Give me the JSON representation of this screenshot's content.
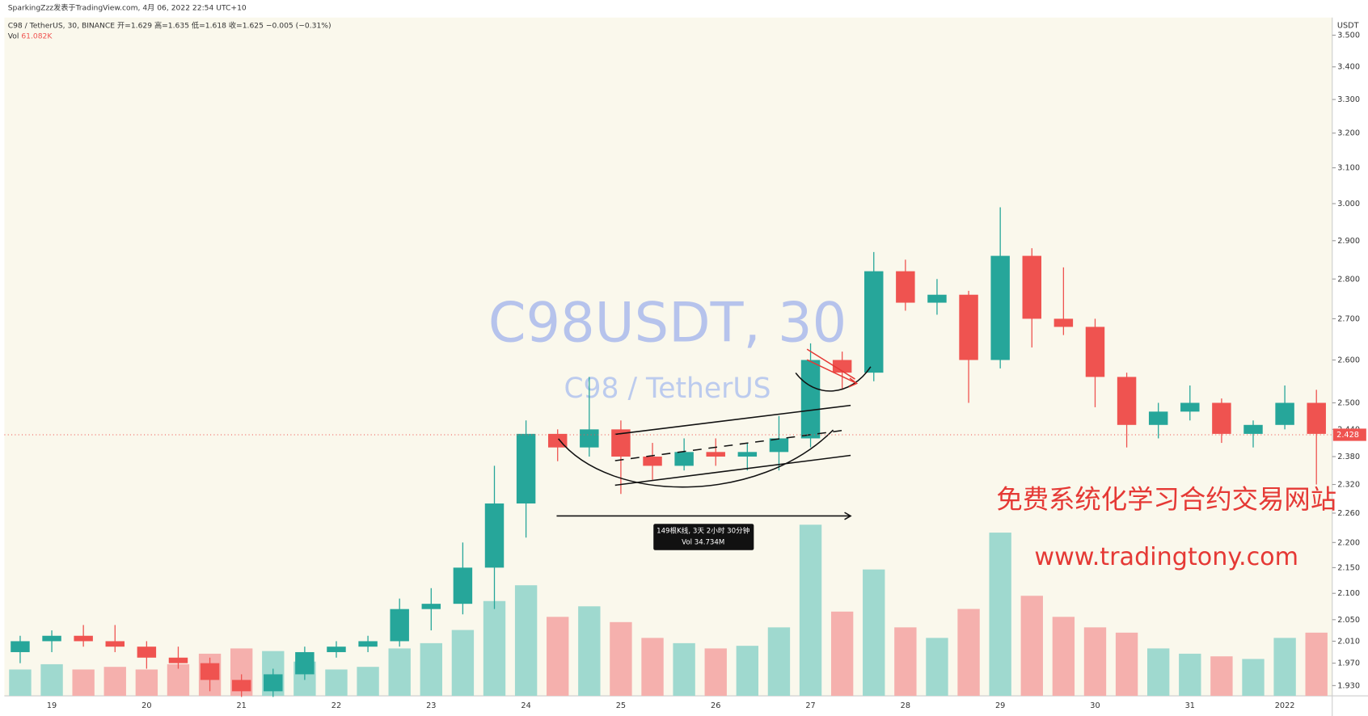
{
  "header": {
    "publisher": "SparkingZzz发表于TradingView.com,  4月 06, 2022 22:54 UTC+10",
    "legend": "C98 / TetherUS, 30, BINANCE",
    "ohlc_text": "开=1.629  高=1.635  低=1.618  收=1.625  −0.005 (−0.31%)",
    "vol_label": "Vol",
    "vol_value": "61.082K"
  },
  "chart_data": {
    "type": "candlestick",
    "watermark": "C98USDT, 30",
    "watermark_sub": "C98 / TetherUS",
    "currency": "USDT",
    "log_scale": true,
    "grid": false,
    "up_color": "#26a69a",
    "down_color": "#ef5350",
    "categories": [
      null,
      "19",
      null,
      null,
      "20",
      null,
      null,
      "21",
      null,
      null,
      "22",
      null,
      null,
      "23",
      null,
      null,
      "24",
      null,
      null,
      "25",
      null,
      null,
      "26",
      null,
      null,
      "27",
      null,
      null,
      "28",
      null,
      null,
      "29",
      null,
      null,
      "30",
      null,
      null,
      "31",
      null,
      null,
      "2022",
      null
    ],
    "open": [
      1.99,
      2.01,
      2.02,
      2.01,
      2.0,
      1.98,
      1.97,
      1.94,
      1.92,
      1.95,
      1.99,
      2.0,
      2.01,
      2.07,
      2.08,
      2.15,
      2.28,
      2.43,
      2.4,
      2.44,
      2.38,
      2.36,
      2.39,
      2.38,
      2.39,
      2.42,
      2.6,
      2.57,
      2.82,
      2.74,
      2.76,
      2.6,
      2.86,
      2.7,
      2.68,
      2.56,
      2.45,
      2.48,
      2.5,
      2.43,
      2.45,
      2.5
    ],
    "high": [
      2.02,
      2.03,
      2.04,
      2.04,
      2.01,
      2.0,
      1.98,
      1.95,
      1.96,
      2.0,
      2.01,
      2.02,
      2.09,
      2.11,
      2.2,
      2.36,
      2.46,
      2.44,
      2.56,
      2.46,
      2.41,
      2.42,
      2.42,
      2.41,
      2.47,
      2.64,
      2.62,
      2.87,
      2.85,
      2.8,
      2.77,
      2.99,
      2.88,
      2.83,
      2.7,
      2.57,
      2.5,
      2.54,
      2.51,
      2.46,
      2.54,
      2.53
    ],
    "low": [
      1.97,
      1.99,
      2.0,
      1.99,
      1.96,
      1.96,
      1.92,
      1.91,
      1.91,
      1.94,
      1.98,
      1.99,
      2.0,
      2.03,
      2.06,
      2.07,
      2.21,
      2.37,
      2.38,
      2.3,
      2.33,
      2.35,
      2.36,
      2.35,
      2.35,
      2.4,
      2.53,
      2.55,
      2.72,
      2.71,
      2.5,
      2.58,
      2.63,
      2.66,
      2.49,
      2.4,
      2.42,
      2.46,
      2.41,
      2.4,
      2.44,
      2.32
    ],
    "close": [
      2.01,
      2.02,
      2.01,
      2.0,
      1.98,
      1.97,
      1.94,
      1.92,
      1.95,
      1.99,
      2.0,
      2.01,
      2.07,
      2.08,
      2.15,
      2.28,
      2.43,
      2.4,
      2.44,
      2.38,
      2.36,
      2.39,
      2.38,
      2.39,
      2.42,
      2.6,
      2.57,
      2.82,
      2.74,
      2.76,
      2.6,
      2.86,
      2.7,
      2.68,
      2.56,
      2.45,
      2.48,
      2.5,
      2.43,
      2.45,
      2.5,
      2.43
    ],
    "volume": {
      "values": [
        1.0,
        1.2,
        1.0,
        1.1,
        1.0,
        1.2,
        1.6,
        1.8,
        1.7,
        1.3,
        1.0,
        1.1,
        1.8,
        2.0,
        2.5,
        3.6,
        4.2,
        3.0,
        3.4,
        2.8,
        2.2,
        2.0,
        1.8,
        1.9,
        2.6,
        6.5,
        3.2,
        4.8,
        2.6,
        2.2,
        3.3,
        6.2,
        3.8,
        3.0,
        2.6,
        2.4,
        1.8,
        1.6,
        1.5,
        1.4,
        2.2,
        2.4
      ],
      "ylim": [
        0,
        10
      ],
      "up_color": "#9fd9cf",
      "down_color": "#f5b0ad"
    },
    "ylim": [
      1.912,
      3.557
    ],
    "yticks": [
      {
        "value": 3.5,
        "label": "3.500"
      },
      {
        "value": 3.4,
        "label": "3.400"
      },
      {
        "value": 3.3,
        "label": "3.300"
      },
      {
        "value": 3.2,
        "label": "3.200"
      },
      {
        "value": 3.1,
        "label": "3.100"
      },
      {
        "value": 3.0,
        "label": "3.000"
      },
      {
        "value": 2.9,
        "label": "2.900"
      },
      {
        "value": 2.8,
        "label": "2.800"
      },
      {
        "value": 2.7,
        "label": "2.700"
      },
      {
        "value": 2.6,
        "label": "2.600"
      },
      {
        "value": 2.5,
        "label": "2.500"
      },
      {
        "value": 2.44,
        "label": "2.440"
      },
      {
        "value": 2.38,
        "label": "2.380"
      },
      {
        "value": 2.32,
        "label": "2.320"
      },
      {
        "value": 2.26,
        "label": "2.260"
      },
      {
        "value": 2.2,
        "label": "2.200"
      },
      {
        "value": 2.15,
        "label": "2.150"
      },
      {
        "value": 2.1,
        "label": "2.100"
      },
      {
        "value": 2.05,
        "label": "2.050"
      },
      {
        "value": 2.01,
        "label": "2.010"
      },
      {
        "value": 1.97,
        "label": "1.970"
      },
      {
        "value": 1.93,
        "label": "1.930"
      }
    ],
    "last_price": 2.428,
    "measure": {
      "bars": "149根K线, 3天 2小时 30分钟",
      "volume": "Vol 34.734M"
    }
  },
  "promo": {
    "slogan": "免费系统化学习合约交易网站",
    "url": "www.tradingtony.com"
  }
}
